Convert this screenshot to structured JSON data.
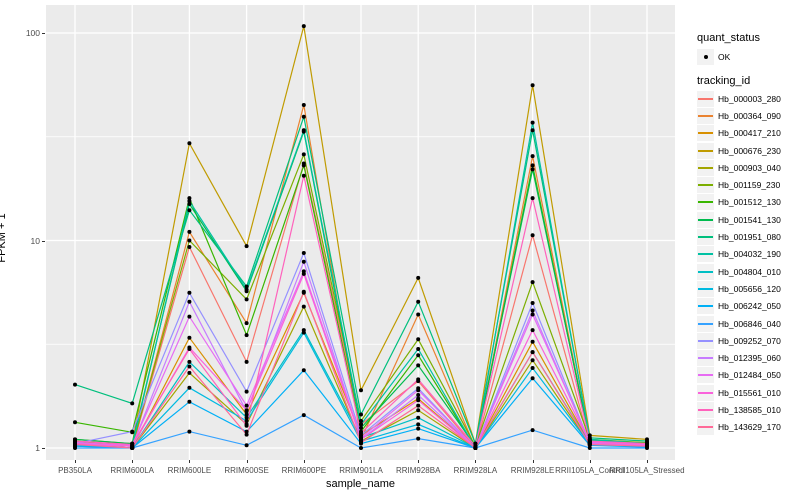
{
  "panel": {
    "bg": "#EBEBEB",
    "grid_color": "#FFFFFF",
    "tick_color": "#333333",
    "axis_text_color": "#4D4D4D"
  },
  "axes": {
    "x_title": "sample_name",
    "y_title": "FPKM + 1",
    "y_tick_values": [
      1,
      10,
      100
    ],
    "y_minor_values": [
      3.1623,
      31.623
    ]
  },
  "legend": {
    "quant_status_title": "quant_status",
    "quant_status_items": [
      {
        "label": "OK",
        "marker": "point",
        "color": "#000000"
      }
    ],
    "tracking_title": "tracking_id",
    "key_fill": "#F2F2F2"
  },
  "chart_data": {
    "type": "line",
    "title": "",
    "xlabel": "sample_name",
    "ylabel": "FPKM + 1",
    "y_scale": "log10",
    "ylim": [
      0.875,
      136
    ],
    "grid": "white major+minor on gray panel",
    "legend_position": "right",
    "point_marker": {
      "shape": "circle",
      "color": "#000000"
    },
    "categories": [
      "PB350LA",
      "RRIM600LA",
      "RRIM600LE",
      "RRIM600SE",
      "RRIM600PE",
      "RRIM901LA",
      "RRIM928BA",
      "RRIM928LA",
      "RRIM928LE",
      "RRII105LA_Control",
      "RRII105LA_Stressed"
    ],
    "series": [
      {
        "name": "Hb_000003_280",
        "color": "#F8766D",
        "values": [
          1.05,
          1.0,
          9.3,
          2.6,
          23.5,
          1.3,
          2.1,
          1.0,
          10.6,
          1.05,
          1.02
        ]
      },
      {
        "name": "Hb_000364_090",
        "color": "#EA8331",
        "values": [
          1.02,
          1.0,
          11.0,
          4.0,
          45,
          1.1,
          4.4,
          1.0,
          25.5,
          1.08,
          1.05
        ]
      },
      {
        "name": "Hb_000417_210",
        "color": "#D89000",
        "values": [
          1.05,
          1.0,
          3.4,
          1.45,
          5.6,
          1.15,
          1.73,
          1.0,
          3.25,
          1.05,
          1.03
        ]
      },
      {
        "name": "Hb_000676_230",
        "color": "#C09B00",
        "values": [
          1.1,
          1.05,
          29.4,
          9.4,
          108,
          1.9,
          6.6,
          1.05,
          56,
          1.15,
          1.1
        ]
      },
      {
        "name": "Hb_000903_040",
        "color": "#A3A500",
        "values": [
          1.03,
          1.0,
          2.3,
          1.3,
          4.8,
          1.08,
          1.52,
          1.0,
          2.65,
          1.04,
          1.02
        ]
      },
      {
        "name": "Hb_001159_230",
        "color": "#7CAE00",
        "values": [
          1.08,
          1.02,
          10.0,
          5.2,
          26,
          1.35,
          3.34,
          1.02,
          6.3,
          1.1,
          1.06
        ]
      },
      {
        "name": "Hb_001512_130",
        "color": "#39B600",
        "values": [
          1.33,
          1.19,
          16.0,
          3.5,
          23,
          1.2,
          2.8,
          1.0,
          23,
          1.07,
          1.04
        ]
      },
      {
        "name": "Hb_001541_130",
        "color": "#00BB4E",
        "values": [
          1.1,
          1.05,
          15.0,
          5.7,
          33.5,
          1.25,
          2.5,
          1.02,
          22,
          1.09,
          1.05
        ]
      },
      {
        "name": "Hb_001951_080",
        "color": "#00BF7D",
        "values": [
          2.02,
          1.64,
          14.0,
          6.0,
          39.5,
          1.45,
          5.07,
          1.05,
          34,
          1.12,
          1.08
        ]
      },
      {
        "name": "Hb_004032_190",
        "color": "#00C1A3",
        "values": [
          1.06,
          1.02,
          15.5,
          5.8,
          34,
          1.3,
          3.0,
          1.0,
          37,
          1.1,
          1.05
        ]
      },
      {
        "name": "Hb_004804_010",
        "color": "#00BFC4",
        "values": [
          1.04,
          1.0,
          2.6,
          1.4,
          3.7,
          1.12,
          1.4,
          1.0,
          2.9,
          1.05,
          1.03
        ]
      },
      {
        "name": "Hb_005656_120",
        "color": "#00BAE0",
        "values": [
          1.03,
          1.0,
          1.95,
          1.35,
          3.6,
          1.08,
          1.3,
          1.0,
          2.43,
          1.04,
          1.02
        ]
      },
      {
        "name": "Hb_006242_050",
        "color": "#00B0F6",
        "values": [
          1.02,
          1.0,
          1.67,
          1.2,
          2.37,
          1.05,
          1.24,
          1.0,
          2.17,
          1.03,
          1.01
        ]
      },
      {
        "name": "Hb_006846_040",
        "color": "#35A2FF",
        "values": [
          1.0,
          1.0,
          1.2,
          1.03,
          1.44,
          1.0,
          1.11,
          1.0,
          1.22,
          1.0,
          1.0
        ]
      },
      {
        "name": "Hb_009252_070",
        "color": "#9590FF",
        "values": [
          1.05,
          1.2,
          5.6,
          1.87,
          8.7,
          1.15,
          1.94,
          1.0,
          5.0,
          1.06,
          1.04
        ]
      },
      {
        "name": "Hb_012395_060",
        "color": "#C77CFF",
        "values": [
          1.04,
          1.02,
          5.07,
          1.5,
          7.9,
          1.1,
          1.8,
          1.0,
          4.6,
          1.05,
          1.03
        ]
      },
      {
        "name": "Hb_012484_050",
        "color": "#E76BF3",
        "values": [
          1.06,
          1.03,
          4.3,
          1.6,
          7.1,
          1.12,
          1.9,
          1.0,
          4.4,
          1.07,
          1.04
        ]
      },
      {
        "name": "Hb_015561_010",
        "color": "#FA62DB",
        "values": [
          1.05,
          1.02,
          3.05,
          1.52,
          6.9,
          1.1,
          1.7,
          1.0,
          3.7,
          1.06,
          1.03
        ]
      },
      {
        "name": "Hb_138585_010",
        "color": "#FF62BC",
        "values": [
          1.08,
          1.04,
          3.0,
          1.28,
          20.5,
          1.18,
          2.14,
          1.02,
          16.0,
          1.08,
          1.05
        ]
      },
      {
        "name": "Hb_143629_170",
        "color": "#FF6A98",
        "values": [
          1.04,
          1.0,
          2.47,
          1.16,
          5.66,
          1.06,
          1.6,
          1.0,
          2.9,
          1.04,
          1.02
        ]
      }
    ]
  }
}
